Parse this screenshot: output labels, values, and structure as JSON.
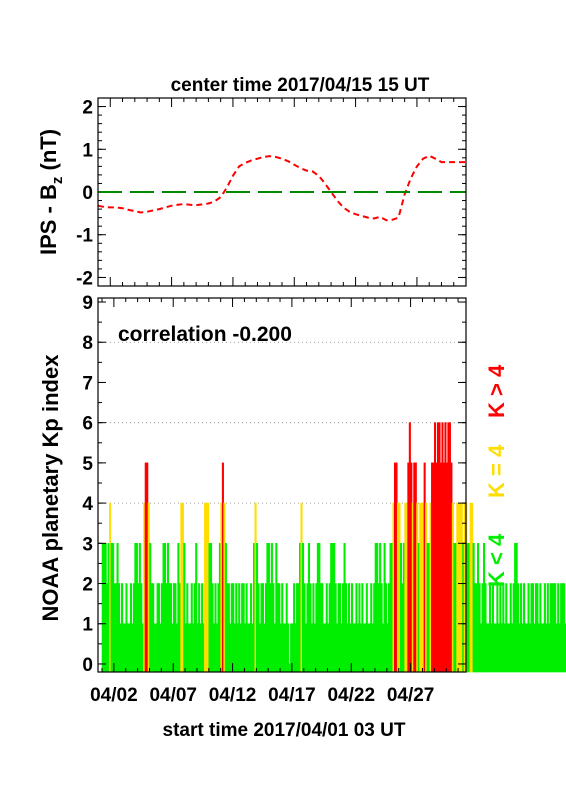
{
  "chart_data": [
    {
      "type": "line",
      "title": "center time 2017/04/15 15 UT",
      "ylabel_main": "IPS - B",
      "ylabel_sub": "z",
      "ylabel_unit": " (nT)",
      "ylim": [
        -2.2,
        2.2
      ],
      "yticks": [
        "2",
        "1",
        "0",
        "-1",
        "-2"
      ],
      "ytick_values": [
        2,
        1,
        0,
        -1,
        -2
      ],
      "xlim": [
        0,
        30
      ],
      "x_tick_days": [
        1,
        6,
        11,
        16,
        21,
        26
      ],
      "grid": false,
      "series": [
        {
          "role": "Bz",
          "color": "#ff0000",
          "style": "dashed",
          "x": [
            0,
            0.5,
            1,
            1.5,
            2,
            2.5,
            3,
            3.5,
            4,
            4.5,
            5,
            5.5,
            6,
            6.5,
            7,
            7.5,
            8,
            8.5,
            9,
            9.5,
            10,
            10.5,
            11,
            11.5,
            12,
            12.5,
            13,
            13.5,
            14,
            14.5,
            15,
            15.5,
            16,
            16.5,
            17,
            17.5,
            18,
            18.5,
            19,
            19.5,
            20,
            20.5,
            21,
            21.5,
            22,
            22.5,
            23,
            23.5,
            24,
            24.5,
            25,
            25.5,
            26,
            26.5,
            27,
            27.5,
            28,
            28.5,
            29,
            29.5,
            30
          ],
          "values": [
            -0.32,
            -0.35,
            -0.36,
            -0.36,
            -0.38,
            -0.42,
            -0.45,
            -0.48,
            -0.46,
            -0.43,
            -0.4,
            -0.36,
            -0.32,
            -0.3,
            -0.28,
            -0.3,
            -0.31,
            -0.29,
            -0.27,
            -0.22,
            -0.12,
            0.1,
            0.38,
            0.6,
            0.68,
            0.74,
            0.78,
            0.82,
            0.84,
            0.82,
            0.78,
            0.72,
            0.64,
            0.56,
            0.5,
            0.48,
            0.38,
            0.2,
            0.0,
            -0.2,
            -0.36,
            -0.46,
            -0.52,
            -0.56,
            -0.6,
            -0.62,
            -0.58,
            -0.66,
            -0.65,
            -0.6,
            -0.05,
            0.32,
            0.6,
            0.78,
            0.85,
            0.78,
            0.7,
            0.7,
            0.7,
            0.7,
            0.7
          ]
        },
        {
          "role": "zero-line",
          "color": "#008800",
          "style": "long-dash",
          "x": [
            0,
            30
          ],
          "values": [
            0,
            0
          ]
        }
      ]
    },
    {
      "type": "bar",
      "ylabel": "NOAA planetary Kp index",
      "ylim": [
        -0.2,
        9.1
      ],
      "yticks": [
        "9",
        "8",
        "7",
        "6",
        "5",
        "4",
        "3",
        "2",
        "1",
        "0"
      ],
      "ytick_values": [
        9,
        8,
        7,
        6,
        5,
        4,
        3,
        2,
        1,
        0
      ],
      "x_tick_labels": [
        "04/02",
        "04/07",
        "04/12",
        "04/17",
        "04/22",
        "04/27"
      ],
      "x_tick_days": [
        1,
        6,
        11,
        16,
        21,
        26
      ],
      "xlabel": "start time 2017/04/01 03 UT",
      "annotation": "correlation -0.200",
      "grid": "dotted horizontal at 4, 6, 8",
      "legend": [
        {
          "label": "K < 4",
          "color": "#00ee00"
        },
        {
          "label": "K = 4",
          "color": "#ffdd00"
        },
        {
          "label": "K > 4",
          "color": "#ff0000"
        }
      ],
      "interval_hours": 3,
      "start_day": 0,
      "values": [
        3,
        3,
        3,
        2,
        3,
        4,
        3,
        3,
        2,
        2,
        3,
        2,
        1,
        2,
        1,
        1,
        2,
        1,
        1,
        2,
        1,
        2,
        3,
        3,
        2,
        3,
        2,
        1,
        4,
        5,
        5,
        4,
        3,
        2,
        2,
        1,
        1,
        2,
        2,
        1,
        2,
        3,
        3,
        2,
        3,
        2,
        2,
        1,
        2,
        2,
        1,
        3,
        2,
        4,
        4,
        3,
        1,
        2,
        1,
        1,
        2,
        1,
        2,
        3,
        1,
        2,
        1,
        2,
        1,
        4,
        4,
        4,
        3,
        3,
        2,
        1,
        2,
        1,
        2,
        3,
        4,
        5,
        4,
        3,
        2,
        2,
        1,
        2,
        2,
        1,
        2,
        1,
        2,
        1,
        2,
        2,
        1,
        2,
        1,
        1,
        2,
        1,
        3,
        4,
        3,
        2,
        1,
        2,
        2,
        1,
        2,
        3,
        3,
        2,
        3,
        2,
        1,
        3,
        2,
        2,
        1,
        2,
        1,
        1,
        2,
        1,
        0,
        1,
        1,
        2,
        1,
        2,
        2,
        3,
        4,
        3,
        2,
        1,
        2,
        3,
        2,
        1,
        2,
        1,
        2,
        3,
        3,
        2,
        2,
        1,
        1,
        2,
        1,
        2,
        3,
        3,
        3,
        2,
        1,
        2,
        2,
        1,
        2,
        3,
        2,
        1,
        2,
        1,
        2,
        1,
        1,
        2,
        1,
        2,
        1,
        2,
        1,
        1,
        2,
        1,
        1,
        2,
        1,
        2,
        3,
        3,
        2,
        3,
        2,
        1,
        3,
        2,
        1,
        2,
        3,
        3,
        4,
        5,
        5,
        4,
        4,
        3,
        2,
        3,
        4,
        4,
        5,
        6,
        5,
        4,
        5,
        5,
        4,
        3,
        4,
        4,
        4,
        5,
        4,
        3,
        3,
        4,
        5,
        5,
        6,
        5,
        6,
        6,
        5,
        6,
        5,
        6,
        5,
        6,
        6,
        5,
        4,
        3,
        3,
        4,
        4,
        4,
        4,
        3,
        4,
        4,
        3,
        3,
        4,
        4,
        3,
        2,
        2,
        3,
        2,
        1,
        2,
        3,
        2,
        1,
        1,
        2,
        1,
        2,
        1,
        1,
        2,
        1,
        2,
        1,
        2,
        1,
        2,
        1,
        1,
        2,
        1,
        2,
        3,
        3,
        2,
        1,
        2,
        1,
        2,
        1,
        1,
        2,
        1,
        2,
        2,
        1,
        2,
        2,
        1,
        2,
        1,
        1,
        2,
        1,
        2,
        1,
        2,
        2,
        2,
        2,
        1,
        2,
        1,
        2,
        2,
        2,
        1,
        1,
        1,
        2,
        1,
        2,
        2,
        2,
        2,
        2,
        2,
        2,
        2,
        2,
        2
      ]
    }
  ]
}
